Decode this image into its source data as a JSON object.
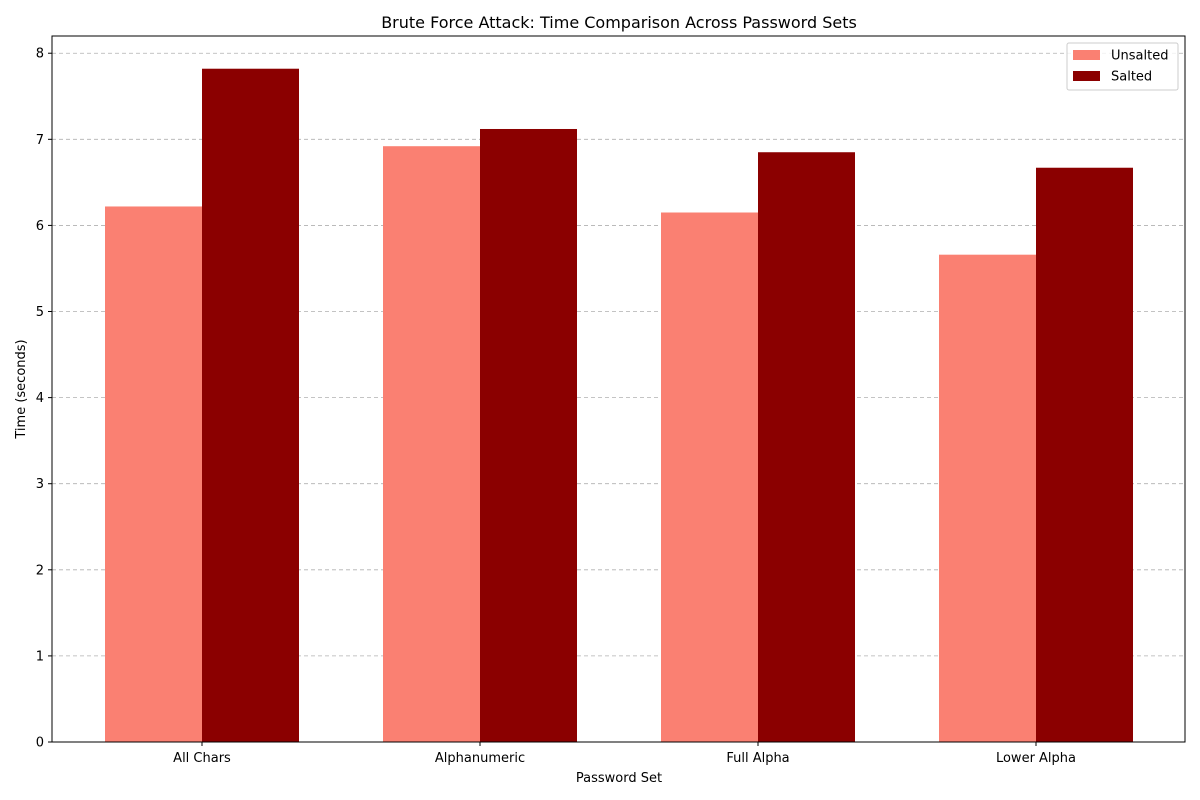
{
  "chart_data": {
    "type": "bar",
    "title": "Brute Force Attack: Time Comparison Across Password Sets",
    "xlabel": "Password Set",
    "ylabel": "Time (seconds)",
    "categories": [
      "All Chars",
      "Alphanumeric",
      "Full Alpha",
      "Lower Alpha"
    ],
    "series": [
      {
        "name": "Unsalted",
        "color": "#fa8072",
        "values": [
          6.22,
          6.92,
          6.15,
          5.66
        ]
      },
      {
        "name": "Salted",
        "color": "#8b0000",
        "values": [
          7.82,
          7.12,
          6.85,
          6.67
        ]
      }
    ],
    "ylim": [
      0,
      8.2
    ],
    "yticks": [
      "0",
      "1",
      "2",
      "3",
      "4",
      "5",
      "6",
      "7",
      "8"
    ],
    "grid": "y-dashed",
    "legend": "top-right"
  }
}
